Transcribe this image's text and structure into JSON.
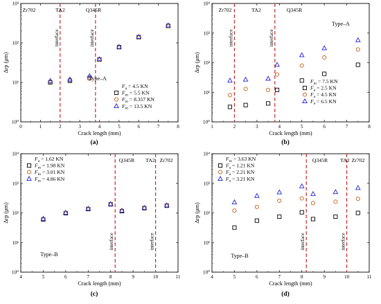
{
  "figure": {
    "panel_labels": [
      "(a)",
      "(b)",
      "(c)",
      "(d)"
    ],
    "interface_label": "interface"
  },
  "chart_data": [
    {
      "type": "scatter",
      "panel": "(a)",
      "xlabel": "Crack length (mm)",
      "ylabel": "Δrp (μm)",
      "xlim": [
        0,
        8
      ],
      "xticks": [
        "0",
        "1",
        "2",
        "3",
        "4",
        "5",
        "6",
        "7",
        "8"
      ],
      "ylim_log10": [
        0,
        3
      ],
      "yticks": [
        "10⁰",
        "10¹",
        "10²",
        "10³"
      ],
      "log_y": true,
      "regions": [
        "Zr702",
        "TA2",
        "Q345R"
      ],
      "interfaces": [
        2.0,
        3.8
      ],
      "annotation": "Type–A",
      "legend_position": "bottom-right",
      "legend": [
        "Fa = 4.5 KN",
        "Fm = 5.5 KN",
        "Fm = 8.357 KN",
        "Fm = 13.5 KN"
      ],
      "series": [
        {
          "name": "Fm = 5.5 KN",
          "marker": "square",
          "color": "#000000",
          "x": [
            1.5,
            2.5,
            3.5,
            4.0,
            5.0,
            6.0,
            7.5
          ],
          "y": [
            10,
            11,
            13,
            38,
            78,
            140,
            270
          ]
        },
        {
          "name": "Fm = 8.357 KN",
          "marker": "circle",
          "color": "#c0621e",
          "x": [
            1.5,
            2.5,
            3.5,
            4.0,
            5.0,
            6.0,
            7.5
          ],
          "y": [
            10.5,
            11.5,
            12.5,
            38,
            78,
            140,
            270
          ]
        },
        {
          "name": "Fm = 13.5 KN",
          "marker": "triangle",
          "color": "#2020d8",
          "x": [
            1.5,
            2.5,
            3.5,
            4.0,
            5.0,
            6.0,
            7.5
          ],
          "y": [
            11,
            12,
            14.5,
            39,
            80,
            143,
            280
          ]
        }
      ]
    },
    {
      "type": "scatter",
      "panel": "(b)",
      "xlabel": "Crack length (mm)",
      "ylabel": "Δrp (μm)",
      "xlim": [
        1,
        8
      ],
      "xticks": [
        "1",
        "2",
        "3",
        "4",
        "5",
        "6",
        "7",
        "8"
      ],
      "ylim_log10": [
        0,
        4
      ],
      "yticks": [
        "10⁰",
        "10¹",
        "10²",
        "10³",
        "10⁴"
      ],
      "log_y": true,
      "regions": [
        "Zr702",
        "TA2",
        "Q345R"
      ],
      "interfaces": [
        2.0,
        3.8
      ],
      "annotation": "Type–A",
      "legend_position": "bottom-right",
      "legend": [
        "Fm = 7.5 KN",
        "Fa = 2.5 KN",
        "Fa = 4.5 KN",
        "Fa = 6.5 KN"
      ],
      "series": [
        {
          "name": "Fa = 2.5 KN",
          "marker": "square",
          "color": "#000000",
          "x": [
            1.8,
            2.5,
            3.5,
            3.9,
            5.0,
            6.0,
            7.5
          ],
          "y": [
            3.2,
            3.7,
            4.2,
            12,
            25,
            42,
            85
          ]
        },
        {
          "name": "Fa = 4.5 KN",
          "marker": "circle",
          "color": "#c0621e",
          "x": [
            1.8,
            2.5,
            3.5,
            3.9,
            5.0,
            6.0,
            7.5
          ],
          "y": [
            8,
            13,
            12,
            40,
            80,
            150,
            280
          ]
        },
        {
          "name": "Fa = 6.5 KN",
          "marker": "triangle",
          "color": "#2020d8",
          "x": [
            1.8,
            2.5,
            3.5,
            3.9,
            5.0,
            6.0,
            7.5
          ],
          "y": [
            25,
            27,
            29,
            85,
            180,
            310,
            580
          ]
        }
      ]
    },
    {
      "type": "scatter",
      "panel": "(c)",
      "xlabel": "Crack length (mm)",
      "ylabel": "Δrp (μm)",
      "xlim": [
        4,
        11
      ],
      "xticks": [
        "4",
        "5",
        "6",
        "7",
        "8",
        "9",
        "10",
        "11"
      ],
      "ylim_log10": [
        0,
        4
      ],
      "yticks": [
        "10⁰",
        "10¹",
        "10²",
        "10³",
        "10⁴"
      ],
      "log_y": true,
      "regions": [
        "Q345R",
        "TA2",
        "Zr702"
      ],
      "interfaces": [
        8.2,
        10.0
      ],
      "annotation": "Type–B",
      "legend_position": "top-left",
      "legend": [
        "Fa = 1.62 KN",
        "Fm = 1.98 KN",
        "Fm = 3.01 KN",
        "Fm = 4.86 KN"
      ],
      "series": [
        {
          "name": "Fm = 1.98 KN",
          "marker": "square",
          "color": "#000000",
          "x": [
            5.0,
            6.0,
            7.0,
            8.0,
            8.5,
            9.5,
            10.5
          ],
          "y": [
            60,
            98,
            135,
            195,
            115,
            145,
            175
          ]
        },
        {
          "name": "Fm = 3.01 KN",
          "marker": "circle",
          "color": "#c0621e",
          "x": [
            5.0,
            6.0,
            7.0,
            8.0,
            8.5,
            9.5,
            10.5
          ],
          "y": [
            62,
            100,
            138,
            198,
            118,
            148,
            178
          ]
        },
        {
          "name": "Fm = 4.86 KN",
          "marker": "triangle",
          "color": "#2020d8",
          "x": [
            5.0,
            6.0,
            7.0,
            8.0,
            8.5,
            9.5,
            10.5
          ],
          "y": [
            64,
            102,
            140,
            200,
            120,
            150,
            182
          ]
        }
      ]
    },
    {
      "type": "scatter",
      "panel": "(d)",
      "xlabel": "Crack length (mm)",
      "ylabel": "Δrp (μm)",
      "xlim": [
        4,
        11
      ],
      "xticks": [
        "4",
        "5",
        "6",
        "7",
        "8",
        "9",
        "10",
        "11"
      ],
      "ylim_log10": [
        0,
        4
      ],
      "yticks": [
        "10⁰",
        "10¹",
        "10²",
        "10³",
        "10⁴"
      ],
      "log_y": true,
      "regions": [
        "Q345R",
        "TA2",
        "Zr702"
      ],
      "interfaces": [
        8.2,
        10.0
      ],
      "annotation": "Type–B",
      "legend_position": "top-left",
      "legend": [
        "Fm = 3.63 KN",
        "Fa = 1.21 KN",
        "Fa = 2.21 KN",
        "Fa = 3.21 KN"
      ],
      "series": [
        {
          "name": "Fa = 1.21 KN",
          "marker": "square",
          "color": "#000000",
          "x": [
            5.0,
            6.0,
            7.0,
            8.0,
            8.5,
            9.5,
            10.5
          ],
          "y": [
            32,
            55,
            75,
            105,
            62,
            75,
            100
          ]
        },
        {
          "name": "Fa = 2.21 KN",
          "marker": "circle",
          "color": "#c0621e",
          "x": [
            5.0,
            6.0,
            7.0,
            8.0,
            8.5,
            9.5,
            10.5
          ],
          "y": [
            120,
            160,
            260,
            310,
            215,
            240,
            300
          ]
        },
        {
          "name": "Fa = 3.21 KN",
          "marker": "triangle",
          "color": "#2020d8",
          "x": [
            5.0,
            6.0,
            7.0,
            8.0,
            8.5,
            9.5,
            10.5
          ],
          "y": [
            230,
            380,
            500,
            800,
            440,
            510,
            700
          ]
        }
      ]
    }
  ]
}
